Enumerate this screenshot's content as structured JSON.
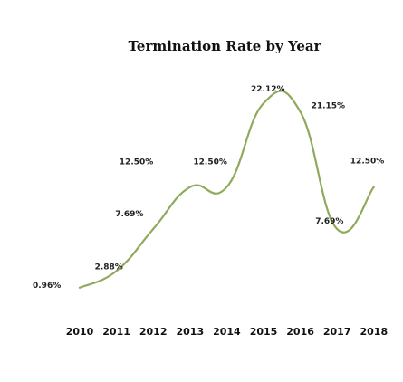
{
  "chart_data": {
    "type": "line",
    "title": "Termination Rate by Year",
    "xlabel": "",
    "ylabel": "",
    "categories": [
      "2010",
      "2011",
      "2012",
      "2013",
      "2014",
      "2015",
      "2016",
      "2017",
      "2018"
    ],
    "series": [
      {
        "values": [
          0.96,
          2.88,
          7.69,
          12.5,
          12.5,
          22.12,
          21.15,
          7.69,
          12.5
        ],
        "labels": [
          "0.96%",
          "2.88%",
          "7.69%",
          "12.50%",
          "12.50%",
          "22.12%",
          "21.15%",
          "7.69%",
          "12.50%"
        ],
        "color": "#8faa5c",
        "smooth": true
      }
    ],
    "ylim": [
      0,
      24
    ],
    "grid": false,
    "legend": "none"
  }
}
